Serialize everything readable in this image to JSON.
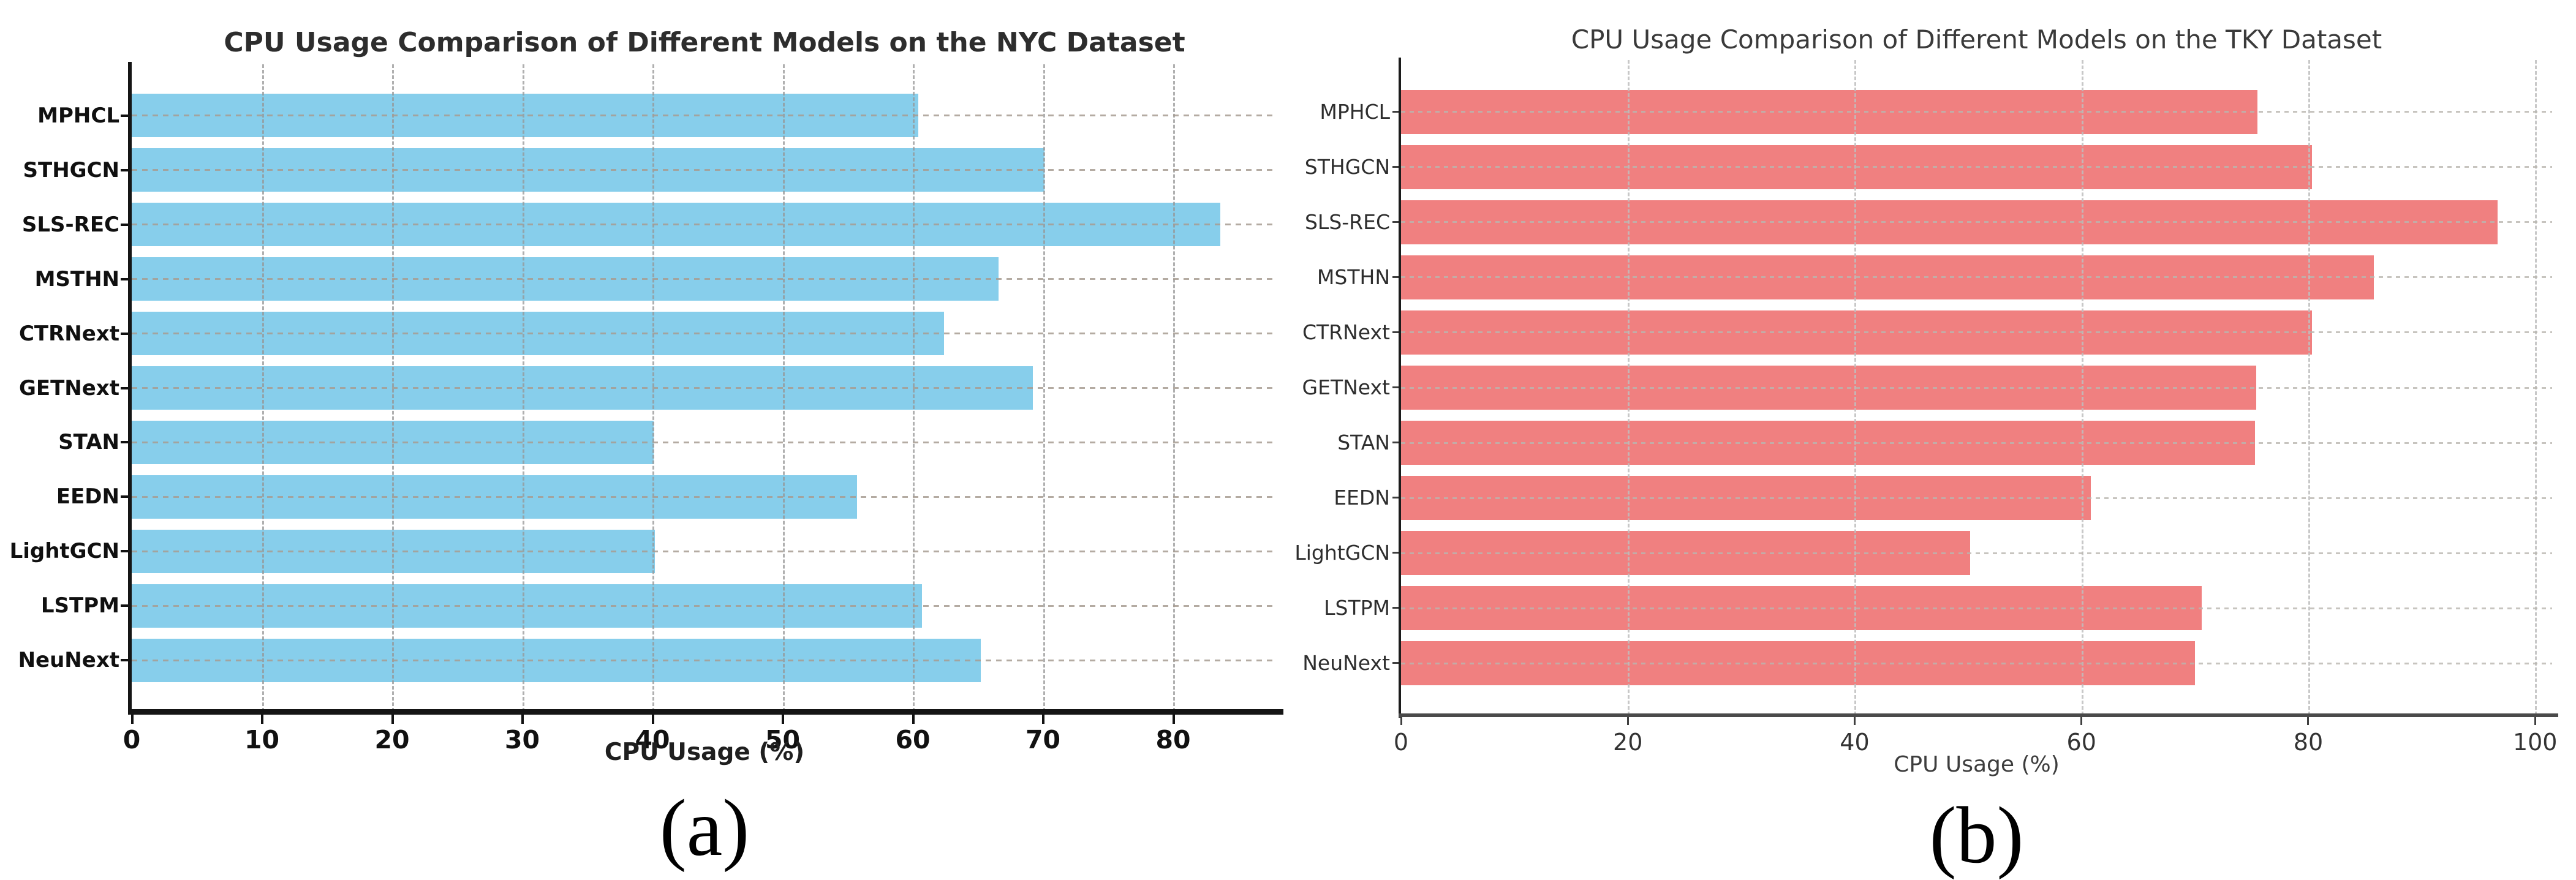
{
  "chart_data": [
    {
      "type": "bar",
      "orientation": "horizontal",
      "title": "CPU Usage Comparison of Different Models on the NYC Dataset",
      "xlabel": "CPU Usage (%)",
      "caption": "(a)",
      "categories": [
        "MPHCL",
        "STHGCN",
        "SLS-REC",
        "MSTHN",
        "CTRNext",
        "GETNext",
        "STAN",
        "EEDN",
        "LightGCN",
        "LSTPM",
        "NeuNext"
      ],
      "values": [
        60.4,
        70.1,
        83.6,
        66.6,
        62.4,
        69.2,
        40.1,
        55.7,
        40.2,
        60.7,
        65.2
      ],
      "xticks": [
        0,
        10,
        20,
        30,
        40,
        50,
        60,
        70,
        80
      ],
      "xlim": [
        0,
        88
      ],
      "bar_color": "#87CEEB",
      "grid": true,
      "legend": false
    },
    {
      "type": "bar",
      "orientation": "horizontal",
      "title": "CPU Usage Comparison of Different Models on the TKY Dataset",
      "xlabel": "CPU Usage (%)",
      "caption": "(b)",
      "categories": [
        "MPHCL",
        "STHGCN",
        "SLS-REC",
        "MSTHN",
        "CTRNext",
        "GETNext",
        "STAN",
        "EEDN",
        "LightGCN",
        "LSTPM",
        "NeuNext"
      ],
      "values": [
        75.5,
        80.3,
        96.7,
        85.8,
        80.3,
        75.4,
        75.3,
        60.8,
        50.2,
        70.6,
        70.0
      ],
      "xticks": [
        0,
        20,
        40,
        60,
        80,
        100
      ],
      "xlim": [
        0,
        101.5
      ],
      "bar_color": "#F08080",
      "grid": true,
      "legend": false
    }
  ]
}
